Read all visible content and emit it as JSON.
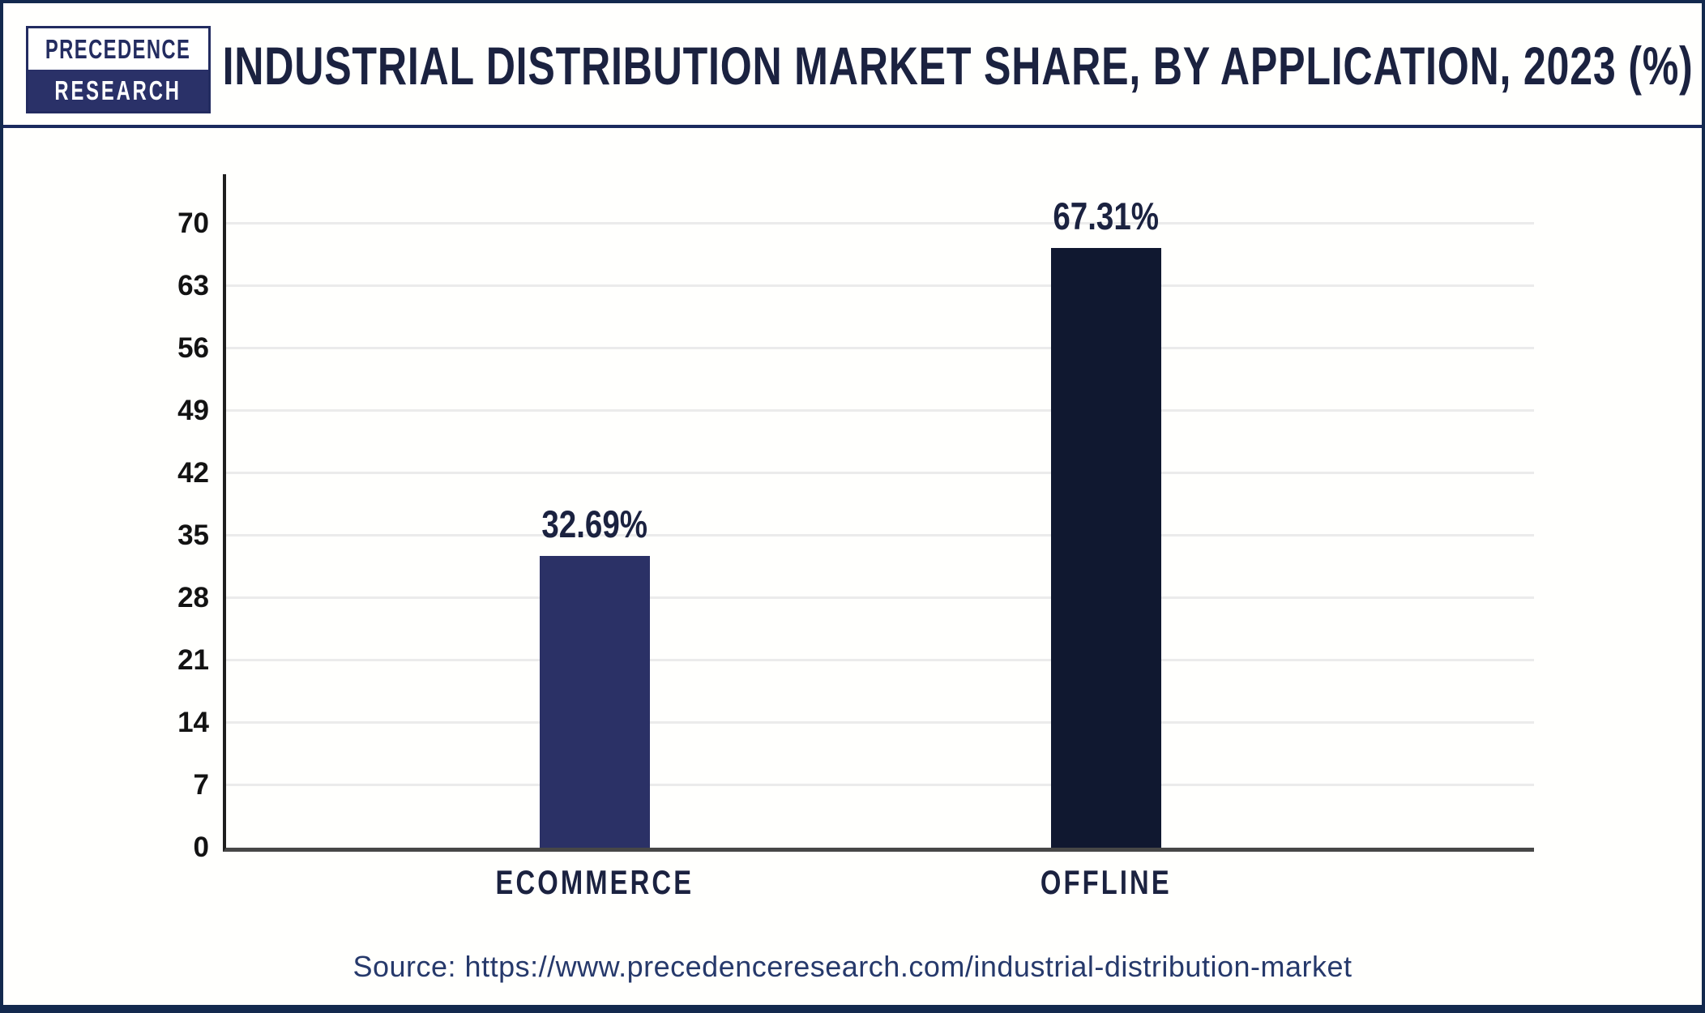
{
  "header": {
    "logo_line1": "PRECEDENCE",
    "logo_line2": "RESEARCH",
    "title": "INDUSTRIAL DISTRIBUTION MARKET SHARE, BY APPLICATION, 2023 (%)"
  },
  "chart_data": {
    "type": "bar",
    "title": "INDUSTRIAL DISTRIBUTION MARKET SHARE, BY APPLICATION, 2023 (%)",
    "categories": [
      "ECOMMERCE",
      "OFFLINE"
    ],
    "values": [
      32.69,
      67.31
    ],
    "value_labels": [
      "32.69%",
      "67.31%"
    ],
    "xlabel": "",
    "ylabel": "",
    "ylim": [
      0,
      70
    ],
    "yticks": [
      0,
      7,
      14,
      21,
      28,
      35,
      42,
      49,
      56,
      63,
      70
    ],
    "grid": true,
    "legend": false,
    "bar_colors": [
      "#2b3166",
      "#101830"
    ],
    "gridline_color": "#ebebeb",
    "accent_navy": "#1b2240"
  },
  "footer": {
    "source": "Source: https://www.precedenceresearch.com/industrial-distribution-market"
  }
}
